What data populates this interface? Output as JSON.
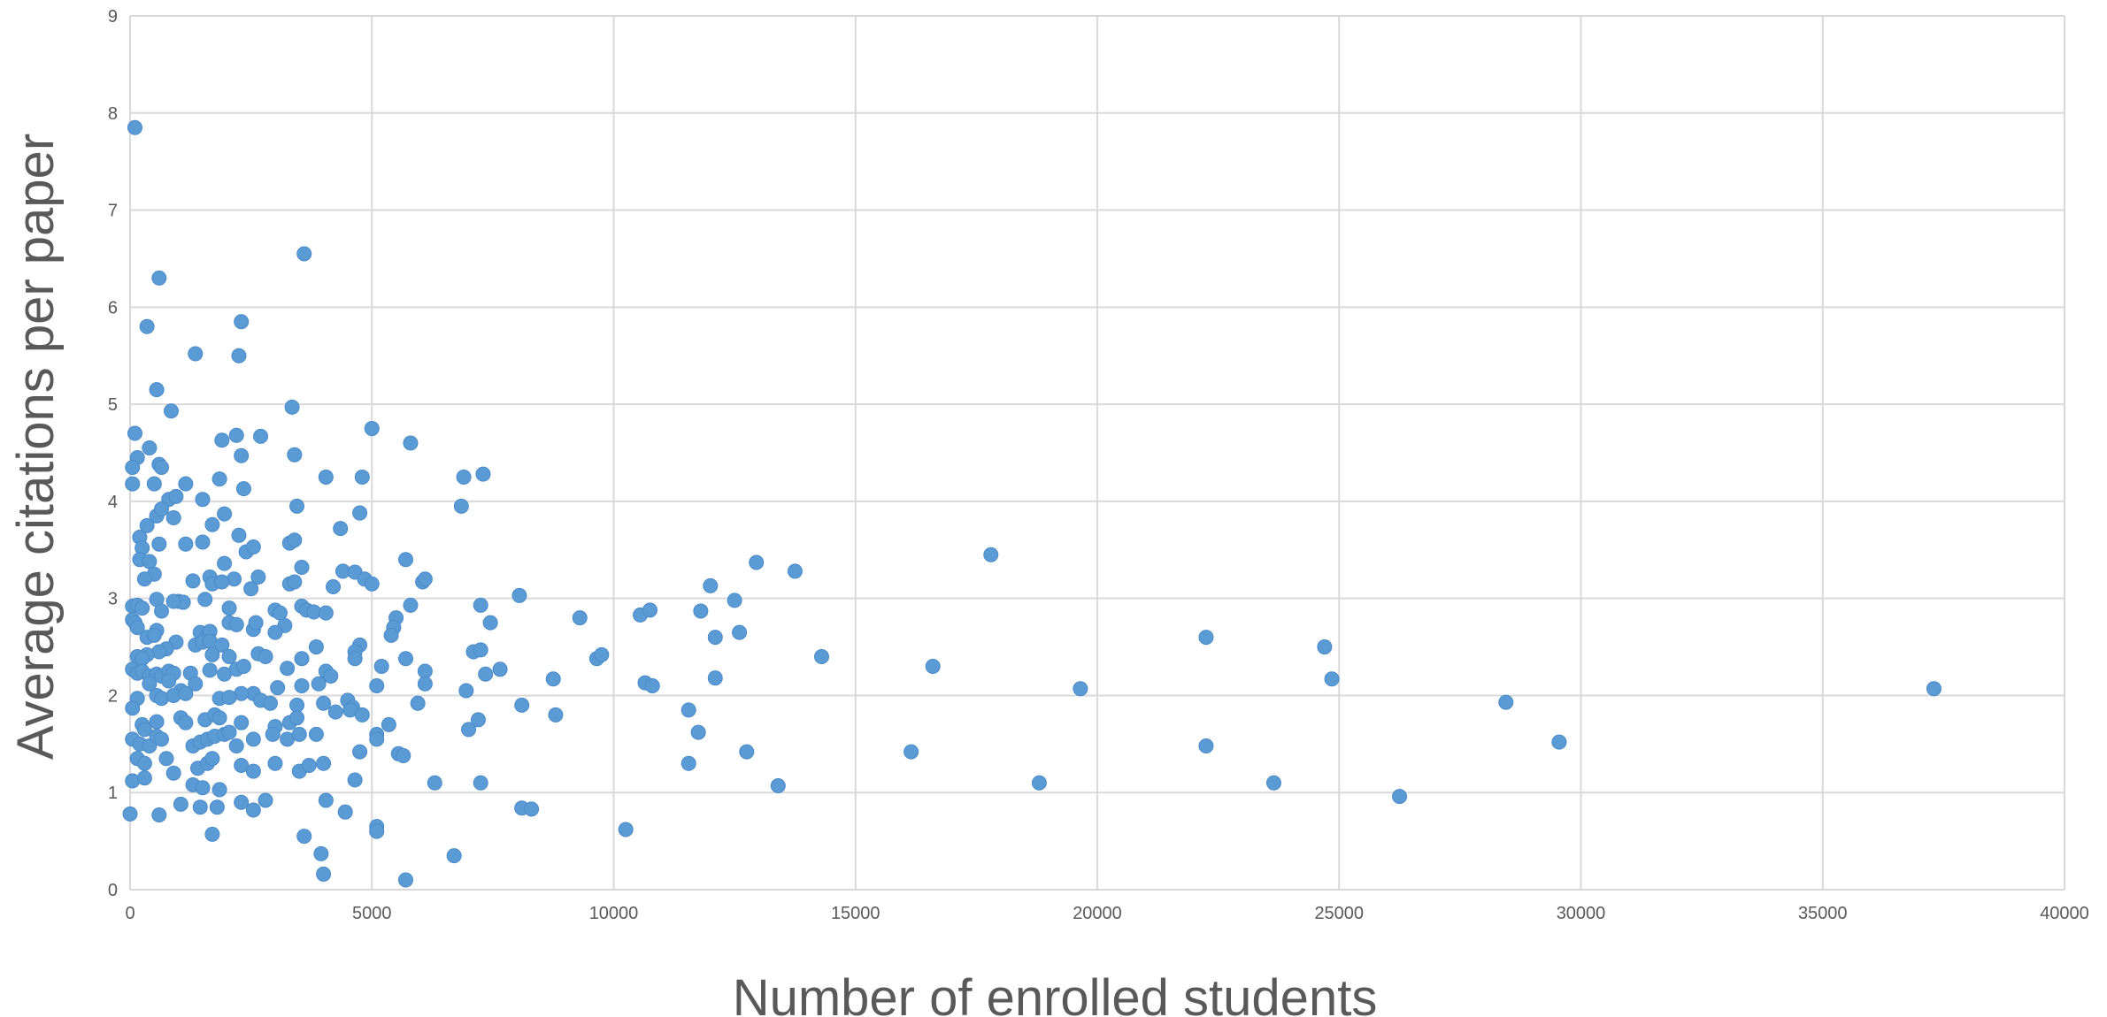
{
  "chart_data": {
    "type": "scatter",
    "xlabel": "Number of enrolled students",
    "ylabel": "Average citations per paper",
    "xlim": [
      0,
      40000
    ],
    "ylim": [
      0,
      9
    ],
    "x_ticks": [
      "0",
      "5000",
      "10000",
      "15000",
      "20000",
      "25000",
      "30000",
      "35000",
      "40000"
    ],
    "y_ticks": [
      "0",
      "1",
      "2",
      "3",
      "4",
      "5",
      "6",
      "7",
      "8",
      "9"
    ],
    "grid": true,
    "legend": "none",
    "marker_color": "#5b9bd5",
    "series": [
      {
        "points": [
          [
            100,
            7.85
          ],
          [
            3600,
            6.55
          ],
          [
            600,
            6.3
          ],
          [
            2300,
            5.85
          ],
          [
            350,
            5.8
          ],
          [
            1350,
            5.52
          ],
          [
            2250,
            5.5
          ],
          [
            550,
            5.15
          ],
          [
            3350,
            4.97
          ],
          [
            850,
            4.93
          ],
          [
            5000,
            4.75
          ],
          [
            100,
            4.7
          ],
          [
            2200,
            4.68
          ],
          [
            2700,
            4.67
          ],
          [
            1900,
            4.63
          ],
          [
            5800,
            4.6
          ],
          [
            400,
            4.55
          ],
          [
            150,
            4.45
          ],
          [
            2300,
            4.47
          ],
          [
            3400,
            4.48
          ],
          [
            50,
            4.35
          ],
          [
            600,
            4.38
          ],
          [
            650,
            4.35
          ],
          [
            4050,
            4.25
          ],
          [
            4800,
            4.25
          ],
          [
            6900,
            4.25
          ],
          [
            7300,
            4.28
          ],
          [
            1850,
            4.23
          ],
          [
            50,
            4.18
          ],
          [
            500,
            4.18
          ],
          [
            1150,
            4.18
          ],
          [
            2350,
            4.13
          ],
          [
            800,
            4.02
          ],
          [
            1500,
            4.02
          ],
          [
            950,
            4.05
          ],
          [
            3450,
            3.95
          ],
          [
            6850,
            3.95
          ],
          [
            4750,
            3.88
          ],
          [
            1950,
            3.87
          ],
          [
            550,
            3.85
          ],
          [
            650,
            3.92
          ],
          [
            350,
            3.75
          ],
          [
            1700,
            3.76
          ],
          [
            900,
            3.83
          ],
          [
            4350,
            3.72
          ],
          [
            2250,
            3.65
          ],
          [
            200,
            3.63
          ],
          [
            600,
            3.56
          ],
          [
            1150,
            3.56
          ],
          [
            1500,
            3.58
          ],
          [
            3300,
            3.57
          ],
          [
            250,
            3.52
          ],
          [
            2400,
            3.48
          ],
          [
            2550,
            3.53
          ],
          [
            3400,
            3.6
          ],
          [
            17800,
            3.45
          ],
          [
            200,
            3.4
          ],
          [
            400,
            3.38
          ],
          [
            1950,
            3.36
          ],
          [
            5700,
            3.4
          ],
          [
            12950,
            3.37
          ],
          [
            13750,
            3.28
          ],
          [
            3550,
            3.32
          ],
          [
            4400,
            3.28
          ],
          [
            4650,
            3.27
          ],
          [
            500,
            3.25
          ],
          [
            1650,
            3.22
          ],
          [
            1300,
            3.18
          ],
          [
            300,
            3.2
          ],
          [
            2150,
            3.2
          ],
          [
            2650,
            3.22
          ],
          [
            3300,
            3.15
          ],
          [
            3400,
            3.17
          ],
          [
            4200,
            3.12
          ],
          [
            4850,
            3.2
          ],
          [
            5000,
            3.15
          ],
          [
            6050,
            3.17
          ],
          [
            6100,
            3.2
          ],
          [
            1700,
            3.15
          ],
          [
            1900,
            3.17
          ],
          [
            2500,
            3.1
          ],
          [
            12000,
            3.13
          ],
          [
            1000,
            2.97
          ],
          [
            1100,
            2.96
          ],
          [
            1550,
            2.99
          ],
          [
            900,
            2.97
          ],
          [
            50,
            2.92
          ],
          [
            150,
            2.93
          ],
          [
            250,
            2.9
          ],
          [
            550,
            2.99
          ],
          [
            3000,
            2.88
          ],
          [
            3550,
            2.92
          ],
          [
            3650,
            2.88
          ],
          [
            3800,
            2.86
          ],
          [
            4050,
            2.85
          ],
          [
            7250,
            2.93
          ],
          [
            8050,
            3.03
          ],
          [
            12500,
            2.98
          ],
          [
            2050,
            2.9
          ],
          [
            3100,
            2.85
          ],
          [
            5800,
            2.93
          ],
          [
            11800,
            2.87
          ],
          [
            10550,
            2.83
          ],
          [
            10750,
            2.88
          ],
          [
            9300,
            2.8
          ],
          [
            5500,
            2.8
          ],
          [
            7450,
            2.75
          ],
          [
            650,
            2.87
          ],
          [
            50,
            2.78
          ],
          [
            100,
            2.75
          ],
          [
            150,
            2.7
          ],
          [
            550,
            2.67
          ],
          [
            1450,
            2.65
          ],
          [
            1600,
            2.62
          ],
          [
            1650,
            2.66
          ],
          [
            2050,
            2.75
          ],
          [
            2200,
            2.73
          ],
          [
            2550,
            2.68
          ],
          [
            2600,
            2.75
          ],
          [
            3200,
            2.72
          ],
          [
            5450,
            2.7
          ],
          [
            5400,
            2.62
          ],
          [
            3000,
            2.65
          ],
          [
            350,
            2.6
          ],
          [
            500,
            2.62
          ],
          [
            12100,
            2.6
          ],
          [
            12600,
            2.65
          ],
          [
            22250,
            2.6
          ],
          [
            24700,
            2.5
          ],
          [
            950,
            2.55
          ],
          [
            1350,
            2.52
          ],
          [
            1500,
            2.55
          ],
          [
            1650,
            2.56
          ],
          [
            1900,
            2.52
          ],
          [
            3850,
            2.5
          ],
          [
            4750,
            2.52
          ],
          [
            4650,
            2.45
          ],
          [
            7100,
            2.45
          ],
          [
            7250,
            2.47
          ],
          [
            750,
            2.48
          ],
          [
            600,
            2.45
          ],
          [
            350,
            2.42
          ],
          [
            150,
            2.4
          ],
          [
            250,
            2.38
          ],
          [
            1700,
            2.42
          ],
          [
            2050,
            2.4
          ],
          [
            2650,
            2.43
          ],
          [
            2800,
            2.4
          ],
          [
            3550,
            2.38
          ],
          [
            4650,
            2.38
          ],
          [
            5700,
            2.38
          ],
          [
            9650,
            2.38
          ],
          [
            9750,
            2.42
          ],
          [
            14300,
            2.4
          ],
          [
            50,
            2.27
          ],
          [
            150,
            2.23
          ],
          [
            250,
            2.25
          ],
          [
            400,
            2.2
          ],
          [
            550,
            2.22
          ],
          [
            650,
            2.2
          ],
          [
            800,
            2.25
          ],
          [
            900,
            2.23
          ],
          [
            1250,
            2.23
          ],
          [
            1650,
            2.26
          ],
          [
            1950,
            2.22
          ],
          [
            2200,
            2.27
          ],
          [
            2350,
            2.3
          ],
          [
            3250,
            2.28
          ],
          [
            4050,
            2.25
          ],
          [
            4150,
            2.2
          ],
          [
            5200,
            2.3
          ],
          [
            6100,
            2.25
          ],
          [
            7350,
            2.22
          ],
          [
            7650,
            2.27
          ],
          [
            8750,
            2.17
          ],
          [
            12100,
            2.18
          ],
          [
            16600,
            2.3
          ],
          [
            24850,
            2.17
          ],
          [
            400,
            2.12
          ],
          [
            800,
            2.15
          ],
          [
            1050,
            2.05
          ],
          [
            1350,
            2.12
          ],
          [
            2550,
            2.02
          ],
          [
            2300,
            2.02
          ],
          [
            3050,
            2.08
          ],
          [
            3550,
            2.1
          ],
          [
            3900,
            2.12
          ],
          [
            5100,
            2.1
          ],
          [
            6100,
            2.12
          ],
          [
            6950,
            2.05
          ],
          [
            10650,
            2.13
          ],
          [
            10800,
            2.1
          ],
          [
            19650,
            2.07
          ],
          [
            37300,
            2.07
          ],
          [
            150,
            1.97
          ],
          [
            550,
            2.0
          ],
          [
            650,
            1.97
          ],
          [
            900,
            2.0
          ],
          [
            1150,
            2.02
          ],
          [
            1850,
            1.97
          ],
          [
            2050,
            1.98
          ],
          [
            2700,
            1.95
          ],
          [
            2900,
            1.92
          ],
          [
            3450,
            1.9
          ],
          [
            4000,
            1.92
          ],
          [
            4500,
            1.95
          ],
          [
            4600,
            1.88
          ],
          [
            5950,
            1.92
          ],
          [
            8100,
            1.9
          ],
          [
            28450,
            1.93
          ],
          [
            50,
            1.87
          ],
          [
            250,
            1.7
          ],
          [
            300,
            1.65
          ],
          [
            550,
            1.73
          ],
          [
            1050,
            1.77
          ],
          [
            1150,
            1.72
          ],
          [
            1550,
            1.75
          ],
          [
            1750,
            1.8
          ],
          [
            1850,
            1.77
          ],
          [
            2300,
            1.72
          ],
          [
            3000,
            1.68
          ],
          [
            3300,
            1.72
          ],
          [
            3450,
            1.77
          ],
          [
            4250,
            1.83
          ],
          [
            4550,
            1.85
          ],
          [
            4800,
            1.8
          ],
          [
            5100,
            1.6
          ],
          [
            5350,
            1.7
          ],
          [
            7000,
            1.65
          ],
          [
            7200,
            1.75
          ],
          [
            8800,
            1.8
          ],
          [
            11550,
            1.85
          ],
          [
            11750,
            1.62
          ],
          [
            50,
            1.55
          ],
          [
            200,
            1.5
          ],
          [
            400,
            1.48
          ],
          [
            550,
            1.58
          ],
          [
            650,
            1.55
          ],
          [
            1300,
            1.48
          ],
          [
            1450,
            1.52
          ],
          [
            1600,
            1.55
          ],
          [
            1750,
            1.58
          ],
          [
            1950,
            1.6
          ],
          [
            2050,
            1.62
          ],
          [
            2200,
            1.48
          ],
          [
            2550,
            1.55
          ],
          [
            2950,
            1.6
          ],
          [
            3250,
            1.55
          ],
          [
            3500,
            1.6
          ],
          [
            3850,
            1.6
          ],
          [
            4750,
            1.42
          ],
          [
            5100,
            1.55
          ],
          [
            5550,
            1.4
          ],
          [
            5650,
            1.38
          ],
          [
            12750,
            1.42
          ],
          [
            16150,
            1.42
          ],
          [
            22250,
            1.48
          ],
          [
            29550,
            1.52
          ],
          [
            150,
            1.35
          ],
          [
            300,
            1.3
          ],
          [
            750,
            1.35
          ],
          [
            1400,
            1.25
          ],
          [
            1600,
            1.3
          ],
          [
            1700,
            1.35
          ],
          [
            2300,
            1.28
          ],
          [
            2550,
            1.22
          ],
          [
            3000,
            1.3
          ],
          [
            3500,
            1.22
          ],
          [
            3700,
            1.28
          ],
          [
            4000,
            1.3
          ],
          [
            11550,
            1.3
          ],
          [
            50,
            1.12
          ],
          [
            300,
            1.15
          ],
          [
            900,
            1.2
          ],
          [
            1300,
            1.08
          ],
          [
            1500,
            1.05
          ],
          [
            1850,
            1.03
          ],
          [
            4650,
            1.13
          ],
          [
            6300,
            1.1
          ],
          [
            7250,
            1.1
          ],
          [
            13400,
            1.07
          ],
          [
            18800,
            1.1
          ],
          [
            23650,
            1.1
          ],
          [
            1050,
            0.88
          ],
          [
            1450,
            0.85
          ],
          [
            1800,
            0.85
          ],
          [
            2300,
            0.9
          ],
          [
            2550,
            0.82
          ],
          [
            2800,
            0.92
          ],
          [
            4050,
            0.92
          ],
          [
            4450,
            0.8
          ],
          [
            8100,
            0.84
          ],
          [
            8300,
            0.83
          ],
          [
            26250,
            0.96
          ],
          [
            0,
            0.78
          ],
          [
            600,
            0.77
          ],
          [
            5100,
            0.65
          ],
          [
            10250,
            0.62
          ],
          [
            1700,
            0.57
          ],
          [
            3600,
            0.55
          ],
          [
            5100,
            0.6
          ],
          [
            3950,
            0.37
          ],
          [
            6700,
            0.35
          ],
          [
            4000,
            0.16
          ],
          [
            5700,
            0.1
          ]
        ]
      }
    ]
  }
}
